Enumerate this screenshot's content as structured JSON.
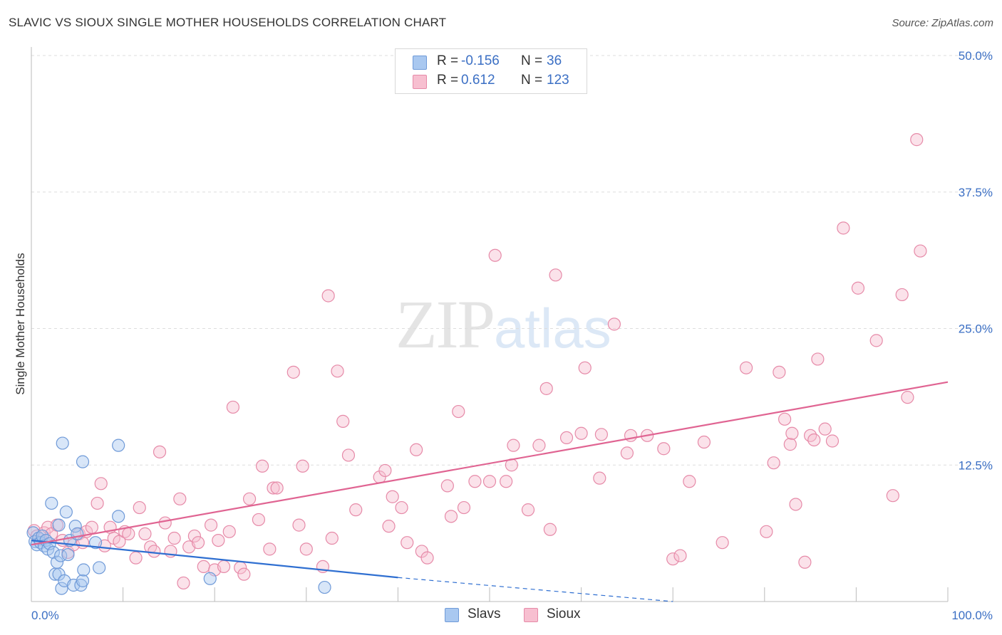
{
  "header": {
    "title": "SLAVIC VS SIOUX SINGLE MOTHER HOUSEHOLDS CORRELATION CHART",
    "source": "Source: ZipAtlas.com"
  },
  "watermark": {
    "zip": "ZIP",
    "atlas": "atlas"
  },
  "legend": {
    "rows": [
      {
        "r_label": "R =",
        "r_value": "-0.156",
        "n_label": "N =",
        "n_value": "36",
        "color": "#a9c8f0",
        "border": "#6f9ad8"
      },
      {
        "r_label": "R =",
        "r_value": "0.612",
        "n_label": "N =",
        "n_value": "123",
        "color": "#f7bfd0",
        "border": "#e68aa8"
      }
    ]
  },
  "bottom_legend": [
    {
      "label": "Slavs",
      "color": "#a9c8f0",
      "border": "#6f9ad8"
    },
    {
      "label": "Sioux",
      "color": "#f7bfd0",
      "border": "#e68aa8"
    }
  ],
  "chart_data": {
    "type": "scatter",
    "title": "SLAVIC VS SIOUX SINGLE MOTHER HOUSEHOLDS CORRELATION CHART",
    "xlabel": "",
    "ylabel": "Single Mother Households",
    "xlim": [
      0,
      100
    ],
    "ylim": [
      0,
      50
    ],
    "x_tick_labels": [
      {
        "value": 0,
        "label": "0.0%"
      },
      {
        "value": 100,
        "label": "100.0%"
      }
    ],
    "y_tick_labels": [
      {
        "value": 12.5,
        "label": "12.5%"
      },
      {
        "value": 25,
        "label": "25.0%"
      },
      {
        "value": 37.5,
        "label": "37.5%"
      },
      {
        "value": 50,
        "label": "50.0%"
      }
    ],
    "grid": true,
    "series": [
      {
        "name": "Slavs",
        "color": "#6f9ad8",
        "fill": "#a9c8f0",
        "trend": {
          "x": [
            0,
            40
          ],
          "y": [
            5.6,
            2.2
          ],
          "dashed_extension_to_x": 70,
          "dashed_end_y": 0.0
        },
        "points": [
          [
            0.2,
            6.3
          ],
          [
            0.4,
            5.5
          ],
          [
            0.6,
            5.2
          ],
          [
            0.8,
            5.8
          ],
          [
            1.0,
            5.4
          ],
          [
            1.2,
            6.0
          ],
          [
            1.4,
            5.1
          ],
          [
            1.6,
            5.6
          ],
          [
            1.8,
            4.8
          ],
          [
            2.0,
            5.3
          ],
          [
            2.2,
            9.0
          ],
          [
            2.4,
            4.5
          ],
          [
            2.6,
            2.5
          ],
          [
            2.8,
            3.6
          ],
          [
            3.0,
            2.5
          ],
          [
            3.2,
            4.2
          ],
          [
            3.0,
            7.0
          ],
          [
            3.3,
            1.2
          ],
          [
            3.6,
            1.9
          ],
          [
            3.4,
            14.5
          ],
          [
            3.8,
            8.2
          ],
          [
            4.0,
            4.3
          ],
          [
            4.2,
            5.6
          ],
          [
            4.6,
            1.5
          ],
          [
            4.8,
            6.9
          ],
          [
            5.0,
            6.2
          ],
          [
            5.4,
            1.5
          ],
          [
            5.6,
            1.9
          ],
          [
            5.7,
            2.9
          ],
          [
            5.6,
            12.8
          ],
          [
            7.4,
            3.1
          ],
          [
            7.0,
            5.4
          ],
          [
            9.5,
            14.3
          ],
          [
            9.5,
            7.8
          ],
          [
            19.5,
            2.1
          ],
          [
            32.0,
            1.3
          ]
        ]
      },
      {
        "name": "Sioux",
        "color": "#e68aa8",
        "fill": "#f7bfd0",
        "trend": {
          "x": [
            0,
            100
          ],
          "y": [
            5.2,
            20.1
          ]
        },
        "points": [
          [
            0.3,
            6.5
          ],
          [
            0.6,
            6.0
          ],
          [
            1.0,
            5.7
          ],
          [
            1.4,
            6.3
          ],
          [
            1.8,
            6.8
          ],
          [
            2.2,
            6.2
          ],
          [
            2.8,
            7.0
          ],
          [
            3.4,
            5.6
          ],
          [
            4.0,
            4.5
          ],
          [
            4.6,
            5.2
          ],
          [
            5.2,
            6.2
          ],
          [
            5.6,
            5.4
          ],
          [
            6.0,
            6.4
          ],
          [
            6.6,
            6.8
          ],
          [
            7.2,
            9.0
          ],
          [
            7.6,
            10.8
          ],
          [
            8.0,
            5.1
          ],
          [
            8.6,
            6.8
          ],
          [
            9.0,
            5.8
          ],
          [
            9.6,
            5.5
          ],
          [
            10.2,
            6.4
          ],
          [
            10.6,
            6.2
          ],
          [
            11.4,
            4.0
          ],
          [
            11.8,
            8.6
          ],
          [
            12.4,
            6.2
          ],
          [
            13.0,
            5.0
          ],
          [
            13.4,
            4.6
          ],
          [
            14.0,
            13.7
          ],
          [
            14.6,
            7.2
          ],
          [
            15.2,
            4.6
          ],
          [
            15.6,
            5.8
          ],
          [
            16.2,
            9.4
          ],
          [
            16.6,
            1.7
          ],
          [
            17.2,
            5.0
          ],
          [
            17.8,
            6.0
          ],
          [
            18.2,
            5.4
          ],
          [
            18.8,
            3.2
          ],
          [
            19.6,
            7.0
          ],
          [
            20.0,
            2.9
          ],
          [
            20.4,
            5.6
          ],
          [
            21.0,
            3.2
          ],
          [
            21.6,
            6.4
          ],
          [
            22.0,
            17.8
          ],
          [
            22.8,
            3.1
          ],
          [
            23.2,
            2.5
          ],
          [
            23.8,
            9.4
          ],
          [
            24.8,
            7.5
          ],
          [
            25.2,
            12.4
          ],
          [
            26.0,
            4.8
          ],
          [
            26.4,
            10.4
          ],
          [
            26.8,
            10.4
          ],
          [
            28.6,
            21.0
          ],
          [
            29.2,
            7.0
          ],
          [
            29.6,
            12.4
          ],
          [
            30.0,
            4.8
          ],
          [
            31.8,
            3.2
          ],
          [
            32.4,
            28.0
          ],
          [
            32.8,
            5.8
          ],
          [
            33.4,
            21.1
          ],
          [
            34.0,
            16.5
          ],
          [
            34.6,
            13.4
          ],
          [
            35.4,
            8.4
          ],
          [
            38.0,
            11.4
          ],
          [
            38.6,
            12.0
          ],
          [
            39.0,
            6.9
          ],
          [
            39.4,
            9.6
          ],
          [
            40.4,
            8.6
          ],
          [
            41.0,
            5.4
          ],
          [
            42.6,
            4.6
          ],
          [
            42.0,
            13.9
          ],
          [
            43.2,
            4.0
          ],
          [
            45.4,
            10.6
          ],
          [
            45.8,
            7.8
          ],
          [
            46.6,
            17.4
          ],
          [
            47.2,
            8.6
          ],
          [
            48.4,
            11.0
          ],
          [
            50.6,
            31.7
          ],
          [
            51.8,
            11.0
          ],
          [
            52.6,
            14.3
          ],
          [
            52.4,
            12.5
          ],
          [
            54.2,
            8.4
          ],
          [
            55.4,
            14.3
          ],
          [
            56.2,
            19.5
          ],
          [
            56.6,
            6.6
          ],
          [
            57.2,
            29.9
          ],
          [
            58.4,
            15.0
          ],
          [
            60.4,
            21.4
          ],
          [
            62.0,
            11.3
          ],
          [
            62.2,
            15.3
          ],
          [
            63.6,
            25.4
          ],
          [
            65.4,
            15.2
          ],
          [
            67.2,
            15.2
          ],
          [
            69.0,
            14.0
          ],
          [
            70.0,
            3.9
          ],
          [
            70.8,
            4.2
          ],
          [
            71.8,
            11.0
          ],
          [
            73.4,
            14.6
          ],
          [
            75.4,
            5.4
          ],
          [
            78.0,
            21.4
          ],
          [
            80.2,
            6.4
          ],
          [
            81.0,
            12.7
          ],
          [
            81.6,
            21.0
          ],
          [
            82.2,
            16.7
          ],
          [
            82.8,
            14.4
          ],
          [
            83.4,
            8.9
          ],
          [
            84.4,
            3.6
          ],
          [
            85.0,
            15.2
          ],
          [
            85.4,
            14.8
          ],
          [
            85.8,
            22.2
          ],
          [
            86.6,
            15.8
          ],
          [
            87.4,
            14.7
          ],
          [
            90.2,
            28.7
          ],
          [
            92.2,
            23.9
          ],
          [
            94.0,
            9.7
          ],
          [
            95.0,
            28.1
          ],
          [
            95.6,
            18.7
          ],
          [
            96.6,
            42.3
          ],
          [
            97.0,
            32.1
          ],
          [
            88.6,
            34.2
          ],
          [
            83.0,
            15.4
          ],
          [
            65.0,
            13.6
          ],
          [
            60.0,
            15.4
          ],
          [
            50.0,
            11.0
          ]
        ]
      }
    ]
  }
}
